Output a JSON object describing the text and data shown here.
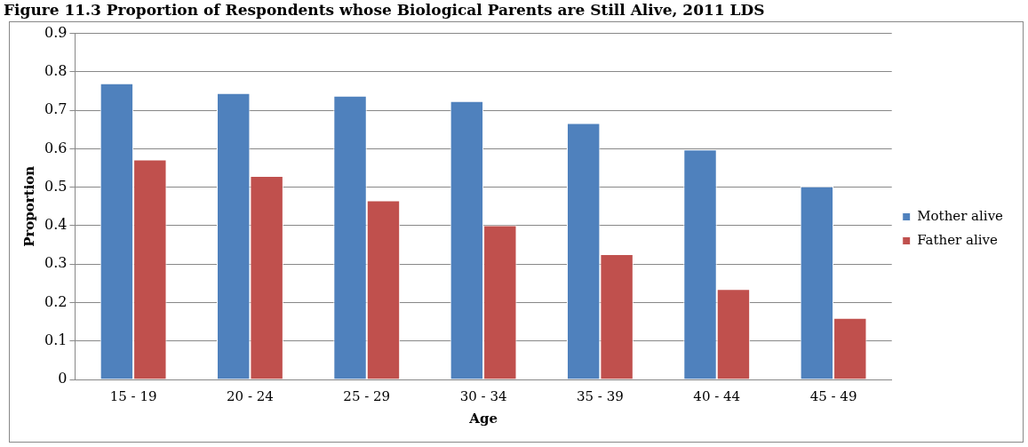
{
  "chart_data": {
    "type": "bar",
    "title": "Figure 11.3 Proportion of Respondents whose Biological Parents are Still Alive, 2011 LDS",
    "xlabel": "Age",
    "ylabel": "Proportion",
    "categories": [
      "15 - 19",
      "20 - 24",
      "25 - 29",
      "30 - 34",
      "35 - 39",
      "40 - 44",
      "45 - 49"
    ],
    "series": [
      {
        "name": "Mother alive",
        "color": "#4f81bd",
        "values": [
          0.77,
          0.745,
          0.738,
          0.724,
          0.667,
          0.598,
          0.502
        ]
      },
      {
        "name": "Father alive",
        "color": "#c0504d",
        "values": [
          0.572,
          0.529,
          0.466,
          0.401,
          0.326,
          0.235,
          0.16
        ]
      }
    ],
    "ylim": [
      0,
      0.9
    ],
    "yticks": [
      0,
      0.1,
      0.2,
      0.3,
      0.4,
      0.5,
      0.6,
      0.7,
      0.8,
      0.9
    ],
    "grid": "y",
    "legend": "right"
  }
}
